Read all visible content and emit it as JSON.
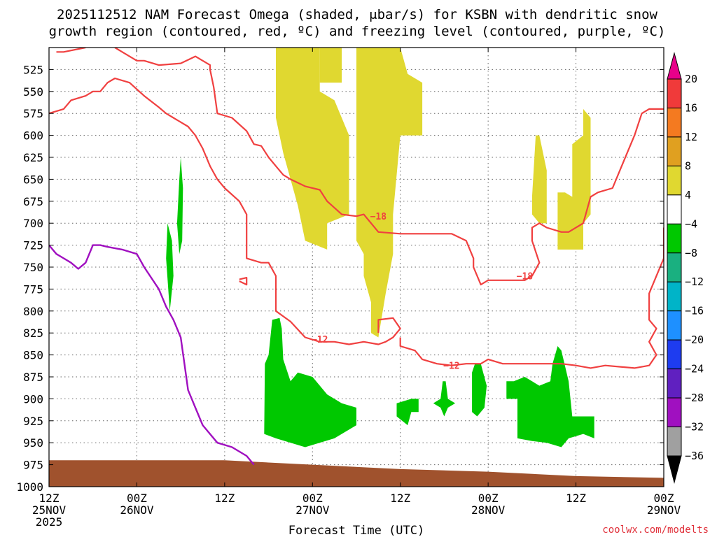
{
  "chart_data": {
    "type": "heatmap",
    "title_line1": "2025112512 NAM Forecast Omega (shaded, μbar/s) for KSBN with dendritic snow",
    "title_line2": "growth region (contoured, red, ºC) and freezing level (contoured, purple, ºC)",
    "xlabel": "Forecast Time (UTC)",
    "x_ticks": [
      {
        "hour": 0,
        "line1": "12Z",
        "line2": "25NOV",
        "line3": "2025"
      },
      {
        "hour": 12,
        "line1": "00Z",
        "line2": "26NOV",
        "line3": ""
      },
      {
        "hour": 24,
        "line1": "12Z",
        "line2": "",
        "line3": ""
      },
      {
        "hour": 36,
        "line1": "00Z",
        "line2": "27NOV",
        "line3": ""
      },
      {
        "hour": 48,
        "line1": "12Z",
        "line2": "",
        "line3": ""
      },
      {
        "hour": 60,
        "line1": "00Z",
        "line2": "28NOV",
        "line3": ""
      },
      {
        "hour": 72,
        "line1": "12Z",
        "line2": "",
        "line3": ""
      },
      {
        "hour": 84,
        "line1": "00Z",
        "line2": "29NOV",
        "line3": ""
      }
    ],
    "x_range_hours": [
      0,
      84
    ],
    "y_range_hPa": [
      500,
      1000
    ],
    "y_ticks": [
      525,
      550,
      575,
      600,
      625,
      650,
      675,
      700,
      725,
      750,
      775,
      800,
      825,
      850,
      875,
      900,
      925,
      950,
      975,
      1000
    ],
    "grid": true,
    "colorbar": {
      "labels": [
        "20",
        "16",
        "12",
        "8",
        "4",
        "−4",
        "−8",
        "−12",
        "−16",
        "−20",
        "−24",
        "−28",
        "−32",
        "−36"
      ],
      "bins": [
        {
          "color": "#e8008a"
        },
        {
          "color": "#f03a3a"
        },
        {
          "color": "#f47a20"
        },
        {
          "color": "#e0a020"
        },
        {
          "color": "#e0d830"
        },
        {
          "color": "#ffffff"
        },
        {
          "color": "#00c800"
        },
        {
          "color": "#1ab080"
        },
        {
          "color": "#00b4c8"
        },
        {
          "color": "#1e90ff"
        },
        {
          "color": "#1e3cf0"
        },
        {
          "color": "#6020c0"
        },
        {
          "color": "#a010c0"
        },
        {
          "color": "#a0a0a0"
        },
        {
          "color": "#000000"
        }
      ]
    },
    "omega_positive_color": "#e0d830",
    "omega_negative_color": "#00c800",
    "terrain_color": "#a0522d",
    "dgz_color": "#f04040",
    "freezing_color": "#a010c0",
    "omega_positive_regions": [
      [
        [
          31,
          500
        ],
        [
          31,
          580
        ],
        [
          32,
          620
        ],
        [
          34,
          680
        ],
        [
          35,
          720
        ],
        [
          38,
          730
        ],
        [
          38,
          700
        ],
        [
          41,
          690
        ],
        [
          41,
          600
        ],
        [
          39,
          560
        ],
        [
          37,
          550
        ],
        [
          37,
          500
        ]
      ],
      [
        [
          37,
          500
        ],
        [
          37,
          540
        ],
        [
          40,
          540
        ],
        [
          40,
          500
        ]
      ],
      [
        [
          42,
          500
        ],
        [
          42,
          720
        ],
        [
          43,
          735
        ],
        [
          43,
          760
        ],
        [
          44,
          790
        ],
        [
          44,
          825
        ],
        [
          45,
          830
        ],
        [
          46,
          780
        ],
        [
          47,
          735
        ],
        [
          47,
          690
        ],
        [
          48,
          600
        ],
        [
          51,
          600
        ],
        [
          51,
          540
        ],
        [
          49,
          530
        ],
        [
          48,
          500
        ]
      ],
      [
        [
          66,
          670
        ],
        [
          66,
          690
        ],
        [
          67,
          700
        ],
        [
          68,
          700
        ],
        [
          68,
          640
        ],
        [
          67,
          600
        ],
        [
          66.5,
          600
        ]
      ],
      [
        [
          69.5,
          665
        ],
        [
          69.5,
          730
        ],
        [
          73,
          730
        ],
        [
          73,
          700
        ],
        [
          74,
          690
        ],
        [
          74,
          580
        ],
        [
          73,
          570
        ],
        [
          73,
          600
        ],
        [
          71.5,
          610
        ],
        [
          71.5,
          670
        ],
        [
          70.5,
          665
        ]
      ]
    ],
    "omega_negative_regions": [
      [
        [
          18,
          625
        ],
        [
          17.8,
          650
        ],
        [
          17.5,
          700
        ],
        [
          17.8,
          735
        ],
        [
          18.2,
          720
        ],
        [
          18.3,
          660
        ]
      ],
      [
        [
          16.2,
          700
        ],
        [
          16,
          740
        ],
        [
          16.5,
          800
        ],
        [
          17,
          760
        ],
        [
          16.8,
          720
        ]
      ],
      [
        [
          29.5,
          860
        ],
        [
          29.4,
          940
        ],
        [
          31,
          945
        ],
        [
          35,
          955
        ],
        [
          39,
          945
        ],
        [
          42,
          930
        ],
        [
          42,
          910
        ],
        [
          40,
          905
        ],
        [
          38,
          895
        ],
        [
          36,
          875
        ],
        [
          34,
          870
        ],
        [
          33,
          880
        ],
        [
          32,
          855
        ],
        [
          31.8,
          820
        ],
        [
          31.5,
          808
        ],
        [
          30.5,
          810
        ],
        [
          30,
          850
        ]
      ],
      [
        [
          47.5,
          905
        ],
        [
          47.5,
          920
        ],
        [
          49,
          930
        ],
        [
          49.5,
          915
        ],
        [
          50.5,
          915
        ],
        [
          50.5,
          900
        ],
        [
          49.5,
          900
        ]
      ],
      [
        [
          52.5,
          905
        ],
        [
          53.5,
          910
        ],
        [
          54,
          920
        ],
        [
          54.5,
          910
        ],
        [
          55.5,
          905
        ],
        [
          54.5,
          900
        ],
        [
          54.2,
          880
        ],
        [
          53.8,
          880
        ],
        [
          53.5,
          900
        ]
      ],
      [
        [
          57.8,
          870
        ],
        [
          57.8,
          915
        ],
        [
          58.5,
          920
        ],
        [
          59.5,
          910
        ],
        [
          59.8,
          885
        ],
        [
          59,
          860
        ],
        [
          58.2,
          860
        ]
      ],
      [
        [
          62.5,
          880
        ],
        [
          62.5,
          900
        ],
        [
          64,
          900
        ],
        [
          64,
          945
        ],
        [
          66,
          948
        ],
        [
          68,
          950
        ],
        [
          70,
          955
        ],
        [
          71,
          945
        ],
        [
          73,
          940
        ],
        [
          74.5,
          945
        ],
        [
          74.5,
          920
        ],
        [
          71.5,
          920
        ],
        [
          71,
          880
        ],
        [
          70,
          845
        ],
        [
          69.5,
          840
        ],
        [
          68.8,
          860
        ],
        [
          68.5,
          880
        ],
        [
          67,
          885
        ],
        [
          66,
          880
        ],
        [
          65,
          875
        ],
        [
          63.5,
          880
        ]
      ]
    ],
    "dgz_contours": [
      {
        "label": "−18",
        "label_at": [
          45,
          692
        ],
        "points": [
          [
            1,
            505
          ],
          [
            2,
            505
          ],
          [
            5,
            500
          ]
        ]
      },
      {
        "label": "−18",
        "label_at": [
          65,
          760
        ],
        "points": [
          [
            9,
            500
          ],
          [
            10,
            505
          ],
          [
            12,
            515
          ],
          [
            13,
            515
          ],
          [
            15,
            520
          ],
          [
            18,
            518
          ],
          [
            19,
            514
          ],
          [
            20,
            510
          ],
          [
            21,
            515
          ],
          [
            22,
            520
          ],
          [
            22,
            525
          ],
          [
            22.5,
            545
          ],
          [
            23,
            575
          ],
          [
            25,
            580
          ],
          [
            27,
            595
          ],
          [
            28,
            610
          ],
          [
            29,
            612
          ],
          [
            30,
            625
          ],
          [
            31,
            635
          ],
          [
            32,
            645
          ],
          [
            33,
            650
          ],
          [
            35,
            658
          ],
          [
            37,
            662
          ],
          [
            38,
            675
          ],
          [
            40,
            690
          ],
          [
            42,
            692
          ],
          [
            43,
            690
          ],
          [
            45,
            710
          ],
          [
            48,
            712
          ],
          [
            52,
            712
          ],
          [
            55,
            712
          ],
          [
            57,
            720
          ],
          [
            58,
            740
          ],
          [
            58,
            750
          ],
          [
            59,
            770
          ],
          [
            60,
            765
          ],
          [
            65,
            765
          ],
          [
            66,
            760
          ],
          [
            67,
            745
          ],
          [
            66,
            720
          ],
          [
            66,
            705
          ],
          [
            67,
            700
          ],
          [
            68,
            705
          ],
          [
            70,
            710
          ],
          [
            71,
            710
          ],
          [
            73,
            700
          ],
          [
            74,
            670
          ],
          [
            75,
            665
          ],
          [
            77,
            660
          ],
          [
            79,
            620
          ],
          [
            80,
            600
          ],
          [
            81,
            575
          ],
          [
            82,
            570
          ],
          [
            84,
            570
          ]
        ]
      },
      {
        "label": "",
        "label_at": null,
        "points": [
          [
            0,
            575
          ],
          [
            2,
            570
          ],
          [
            3,
            560
          ],
          [
            5,
            555
          ],
          [
            6,
            550
          ],
          [
            7,
            550
          ],
          [
            8,
            540
          ],
          [
            9,
            535
          ],
          [
            11,
            540
          ],
          [
            13,
            555
          ],
          [
            15,
            568
          ],
          [
            16,
            575
          ],
          [
            17,
            580
          ],
          [
            19,
            590
          ],
          [
            20,
            600
          ],
          [
            21,
            615
          ],
          [
            22,
            635
          ],
          [
            23,
            650
          ],
          [
            24,
            660
          ],
          [
            26,
            675
          ],
          [
            27,
            690
          ],
          [
            27,
            720
          ],
          [
            27,
            740
          ],
          [
            29,
            745
          ],
          [
            30,
            745
          ],
          [
            31,
            760
          ],
          [
            31,
            800
          ],
          [
            33,
            812
          ],
          [
            35,
            830
          ],
          [
            37,
            835
          ],
          [
            39,
            835
          ],
          [
            41,
            838
          ],
          [
            43,
            835
          ],
          [
            45,
            838
          ],
          [
            46,
            835
          ],
          [
            47,
            830
          ],
          [
            48,
            820
          ],
          [
            47,
            808
          ],
          [
            45,
            810
          ],
          [
            45,
            825
          ]
        ]
      },
      {
        "label": "−12",
        "label_at": [
          37,
          832
        ],
        "points": []
      },
      {
        "label": "−12",
        "label_at": [
          55,
          862
        ],
        "points": [
          [
            48,
            830
          ],
          [
            48,
            840
          ],
          [
            50,
            845
          ],
          [
            51,
            855
          ],
          [
            53,
            860
          ],
          [
            55,
            862
          ],
          [
            57,
            860
          ],
          [
            59,
            860
          ],
          [
            60,
            855
          ],
          [
            62,
            860
          ],
          [
            66,
            860
          ],
          [
            70,
            860
          ],
          [
            72,
            862
          ],
          [
            74,
            865
          ],
          [
            76,
            862
          ],
          [
            80,
            865
          ],
          [
            82,
            862
          ],
          [
            83,
            850
          ],
          [
            82,
            835
          ],
          [
            83,
            820
          ],
          [
            82,
            810
          ],
          [
            82,
            780
          ],
          [
            83,
            760
          ],
          [
            84,
            740
          ],
          [
            84,
            705
          ]
        ]
      },
      {
        "label": "",
        "label_at": null,
        "points": [
          [
            26,
            766
          ],
          [
            27,
            770
          ],
          [
            27,
            762
          ],
          [
            26,
            764
          ]
        ]
      }
    ],
    "freezing_contours": [
      {
        "label": "",
        "points": [
          [
            0,
            725
          ],
          [
            1,
            735
          ],
          [
            2,
            740
          ],
          [
            3,
            745
          ],
          [
            4,
            752
          ],
          [
            5,
            745
          ],
          [
            6,
            725
          ],
          [
            7,
            725
          ],
          [
            8,
            727
          ],
          [
            10,
            730
          ],
          [
            12,
            735
          ],
          [
            13,
            750
          ],
          [
            15,
            775
          ],
          [
            16,
            795
          ],
          [
            17,
            810
          ],
          [
            18,
            830
          ],
          [
            18.5,
            860
          ],
          [
            19,
            890
          ],
          [
            20,
            910
          ],
          [
            21,
            930
          ],
          [
            23,
            950
          ],
          [
            25,
            955
          ],
          [
            27,
            965
          ],
          [
            28,
            975
          ]
        ]
      }
    ],
    "terrain_surface_hPa": [
      {
        "hour": 0,
        "p": 970
      },
      {
        "hour": 12,
        "p": 970
      },
      {
        "hour": 24,
        "p": 970
      },
      {
        "hour": 36,
        "p": 975
      },
      {
        "hour": 48,
        "p": 980
      },
      {
        "hour": 60,
        "p": 983
      },
      {
        "hour": 72,
        "p": 988
      },
      {
        "hour": 84,
        "p": 990
      }
    ]
  },
  "credit": "coolwx.com/modelts"
}
